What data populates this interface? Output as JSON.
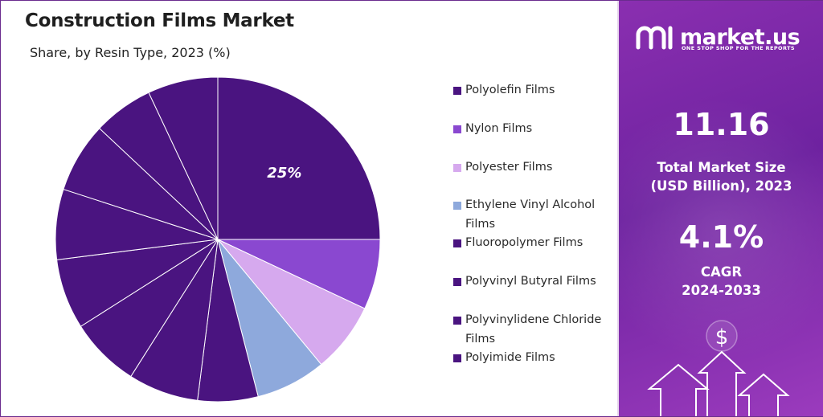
{
  "title": "Construction Films Market",
  "subtitle": "Share, by Resin Type, 2023 (%)",
  "brand": {
    "name": "market.us",
    "tagline": "ONE STOP SHOP FOR THE REPORTS"
  },
  "stats": {
    "market_size_value": "11.16",
    "market_size_label_1": "Total Market Size",
    "market_size_label_2": "(USD Billion), 2023",
    "cagr_value": "4.1%",
    "cagr_label_1": "CAGR",
    "cagr_label_2": "2024-2033"
  },
  "icons": {
    "dollar": "$"
  },
  "colors": {
    "accent": "#7b2aa8",
    "panel": "#7a27a6"
  },
  "chart_data": {
    "type": "pie",
    "title": "Construction Films Market",
    "subtitle": "Share, by Resin Type, 2023 (%)",
    "legend_position": "right",
    "slices": [
      {
        "label": "Polyolefin Films",
        "value": 25,
        "color": "#4a1480",
        "data_label": "25%"
      },
      {
        "label": "Nylon Films",
        "value": 7,
        "color": "#8a48d0"
      },
      {
        "label": "Polyester Films",
        "value": 7,
        "color": "#d6a9ee"
      },
      {
        "label": "Ethylene Vinyl Alcohol Films",
        "value": 7,
        "color": "#8ea9dc"
      },
      {
        "label": "Fluoropolymer Films",
        "value": 6,
        "color": "#4a1480"
      },
      {
        "label": "Polyvinyl Butyral Films",
        "value": 7,
        "color": "#4a1480"
      },
      {
        "label": "Polyvinylidene Chloride Films",
        "value": 7,
        "color": "#4a1480"
      },
      {
        "label": "Polyimide Films",
        "value": 7,
        "color": "#4a1480"
      },
      {
        "label": "",
        "value": 7,
        "color": "#4a1480"
      },
      {
        "label": "",
        "value": 7,
        "color": "#4a1480"
      },
      {
        "label": "",
        "value": 6,
        "color": "#4a1480"
      },
      {
        "label": "",
        "value": 7,
        "color": "#4a1480"
      }
    ]
  }
}
